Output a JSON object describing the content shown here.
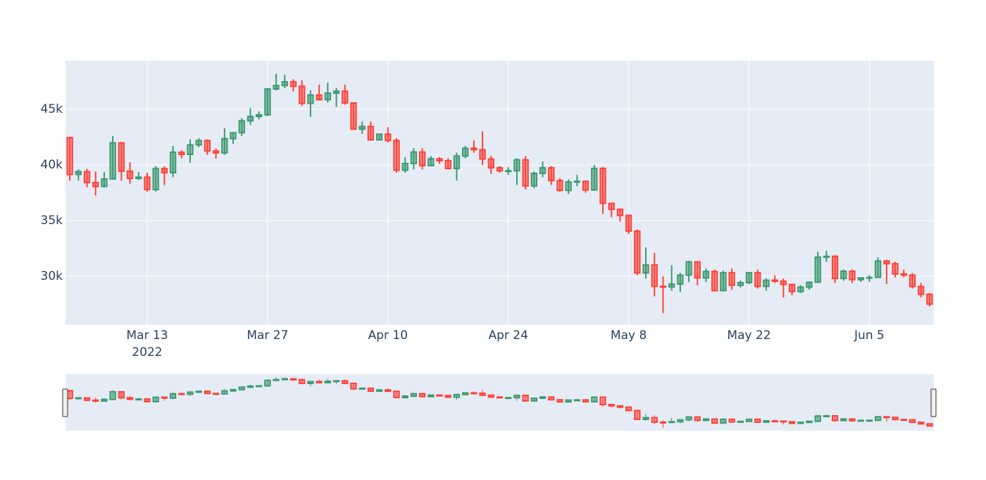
{
  "chart_data": {
    "type": "candlestick",
    "x": [
      "2022-03-04",
      "2022-03-05",
      "2022-03-06",
      "2022-03-07",
      "2022-03-08",
      "2022-03-09",
      "2022-03-10",
      "2022-03-11",
      "2022-03-12",
      "2022-03-13",
      "2022-03-14",
      "2022-03-15",
      "2022-03-16",
      "2022-03-17",
      "2022-03-18",
      "2022-03-19",
      "2022-03-20",
      "2022-03-21",
      "2022-03-22",
      "2022-03-23",
      "2022-03-24",
      "2022-03-25",
      "2022-03-26",
      "2022-03-27",
      "2022-03-28",
      "2022-03-29",
      "2022-03-30",
      "2022-03-31",
      "2022-04-01",
      "2022-04-02",
      "2022-04-03",
      "2022-04-04",
      "2022-04-05",
      "2022-04-06",
      "2022-04-07",
      "2022-04-08",
      "2022-04-09",
      "2022-04-10",
      "2022-04-11",
      "2022-04-12",
      "2022-04-13",
      "2022-04-14",
      "2022-04-15",
      "2022-04-16",
      "2022-04-17",
      "2022-04-18",
      "2022-04-19",
      "2022-04-20",
      "2022-04-21",
      "2022-04-22",
      "2022-04-23",
      "2022-04-24",
      "2022-04-25",
      "2022-04-26",
      "2022-04-27",
      "2022-04-28",
      "2022-04-29",
      "2022-04-30",
      "2022-05-01",
      "2022-05-02",
      "2022-05-03",
      "2022-05-04",
      "2022-05-05",
      "2022-05-06",
      "2022-05-07",
      "2022-05-08",
      "2022-05-09",
      "2022-05-10",
      "2022-05-11",
      "2022-05-12",
      "2022-05-13",
      "2022-05-14",
      "2022-05-15",
      "2022-05-16",
      "2022-05-17",
      "2022-05-18",
      "2022-05-19",
      "2022-05-20",
      "2022-05-21",
      "2022-05-22",
      "2022-05-23",
      "2022-05-24",
      "2022-05-25",
      "2022-05-26",
      "2022-05-27",
      "2022-05-28",
      "2022-05-29",
      "2022-05-30",
      "2022-05-31",
      "2022-06-01",
      "2022-06-02",
      "2022-06-03",
      "2022-06-04",
      "2022-06-05",
      "2022-06-06",
      "2022-06-07",
      "2022-06-08",
      "2022-06-09",
      "2022-06-10",
      "2022-06-11",
      "2022-06-12"
    ],
    "open": [
      42450,
      39150,
      39400,
      38420,
      38060,
      38740,
      41980,
      39440,
      38790,
      38900,
      37790,
      39670,
      39300,
      41140,
      40950,
      41800,
      42190,
      41250,
      41080,
      42360,
      42890,
      43960,
      44350,
      44500,
      46820,
      47130,
      47460,
      47060,
      45530,
      46280,
      45860,
      46450,
      46620,
      45560,
      43210,
      43450,
      42250,
      42760,
      42200,
      39520,
      40130,
      41160,
      39940,
      40550,
      40380,
      39680,
      40800,
      41500,
      41370,
      40530,
      39740,
      39450,
      39480,
      40460,
      38120,
      39240,
      39740,
      38600,
      37710,
      38470,
      38530,
      37750,
      39690,
      36550,
      36010,
      35470,
      34060,
      30300,
      31020,
      29100,
      29050,
      29300,
      30100,
      31300,
      29860,
      30430,
      28710,
      30320,
      29200,
      29430,
      30320,
      29100,
      29650,
      29560,
      29270,
      28630,
      29030,
      29470,
      31720,
      31790,
      29800,
      30460,
      29700,
      29860,
      29900,
      31370,
      31130,
      30210,
      30110,
      29080,
      28380
    ],
    "high": [
      42500,
      39600,
      39650,
      39430,
      39360,
      42600,
      42050,
      40240,
      39360,
      39300,
      39900,
      39860,
      41700,
      41300,
      42300,
      42400,
      42300,
      41500,
      43300,
      42800,
      44200,
      45100,
      44800,
      46900,
      48200,
      48100,
      47700,
      47600,
      46700,
      47200,
      47400,
      46900,
      47200,
      45560,
      43900,
      43900,
      42800,
      43400,
      42400,
      40700,
      41500,
      41500,
      40800,
      40700,
      40600,
      41100,
      41700,
      42200,
      43000,
      40800,
      39900,
      39800,
      40600,
      40800,
      39400,
      40300,
      39900,
      38800,
      38700,
      39100,
      38600,
      40000,
      39800,
      36600,
      36100,
      35500,
      34200,
      32600,
      32100,
      30000,
      31000,
      30300,
      31400,
      31300,
      30700,
      30600,
      30500,
      30700,
      29600,
      30400,
      30600,
      29800,
      30100,
      29800,
      29300,
      29200,
      29500,
      32200,
      32300,
      31900,
      30600,
      30600,
      29900,
      30100,
      31700,
      31500,
      31300,
      30600,
      30300,
      29400,
      28500
    ],
    "low": [
      38600,
      38600,
      38000,
      37260,
      38000,
      38700,
      38600,
      38300,
      38660,
      37600,
      37600,
      38200,
      38900,
      40600,
      40200,
      41600,
      40900,
      40560,
      40900,
      41900,
      42600,
      43600,
      44100,
      44400,
      46700,
      46900,
      46600,
      45300,
      44300,
      45800,
      45600,
      45200,
      45400,
      43200,
      42800,
      42200,
      42200,
      42000,
      39300,
      39300,
      39600,
      39600,
      39900,
      40100,
      39600,
      38600,
      40600,
      41100,
      40000,
      39200,
      39300,
      39100,
      38200,
      37800,
      37900,
      38900,
      38200,
      37600,
      37400,
      38100,
      37500,
      37700,
      35600,
      35300,
      34900,
      33800,
      30100,
      29800,
      28200,
      26700,
      28700,
      28600,
      29500,
      29200,
      29500,
      28700,
      28700,
      28800,
      29000,
      29300,
      28900,
      28700,
      29400,
      28100,
      28300,
      28500,
      28800,
      29400,
      31300,
      29400,
      29600,
      29400,
      29500,
      29500,
      29900,
      29300,
      29900,
      29900,
      28900,
      28100,
      27300
    ],
    "close": [
      39150,
      39400,
      38420,
      38060,
      38740,
      41980,
      39440,
      38790,
      38900,
      37790,
      39670,
      39300,
      41140,
      40950,
      41800,
      42190,
      41250,
      41080,
      42360,
      42890,
      43960,
      44350,
      44500,
      46820,
      47130,
      47460,
      47060,
      45530,
      46280,
      45860,
      46450,
      46620,
      45560,
      43210,
      43450,
      42250,
      42760,
      42200,
      39520,
      40130,
      41160,
      39940,
      40550,
      40380,
      39680,
      40800,
      41500,
      41370,
      40530,
      39740,
      39470,
      39480,
      40460,
      38120,
      39240,
      39740,
      38600,
      37710,
      38470,
      38530,
      37750,
      39690,
      36550,
      36010,
      35470,
      34060,
      30300,
      31020,
      29100,
      29050,
      29300,
      30100,
      31300,
      29860,
      30430,
      28710,
      30320,
      29200,
      29430,
      30320,
      29100,
      29650,
      29560,
      29270,
      28630,
      29030,
      29470,
      31720,
      31790,
      29800,
      30460,
      29700,
      29860,
      29900,
      31370,
      31130,
      30210,
      30110,
      29080,
      28380,
      27500
    ],
    "increasing_color": "#3d9970",
    "decreasing_color": "#ff4136",
    "xlim": [
      "2022-03-03T12:00:00Z",
      "2022-06-12T12:00:00Z"
    ],
    "xticks": [
      {
        "value": "2022-03-13",
        "label": "Mar 13"
      },
      {
        "value": "2022-03-27",
        "label": "Mar 27"
      },
      {
        "value": "2022-04-10",
        "label": "Apr 10"
      },
      {
        "value": "2022-04-24",
        "label": "Apr 24"
      },
      {
        "value": "2022-05-08",
        "label": "May 8"
      },
      {
        "value": "2022-05-22",
        "label": "May 22"
      },
      {
        "value": "2022-06-05",
        "label": "Jun 5"
      }
    ],
    "xtick_year": "2022",
    "ylim": [
      25633,
      49367
    ],
    "yticks": [
      {
        "value": 30000,
        "label": "30k"
      },
      {
        "value": 35000,
        "label": "35k"
      },
      {
        "value": 40000,
        "label": "40k"
      },
      {
        "value": 45000,
        "label": "45k"
      }
    ],
    "grid": true,
    "rangeslider": true
  }
}
